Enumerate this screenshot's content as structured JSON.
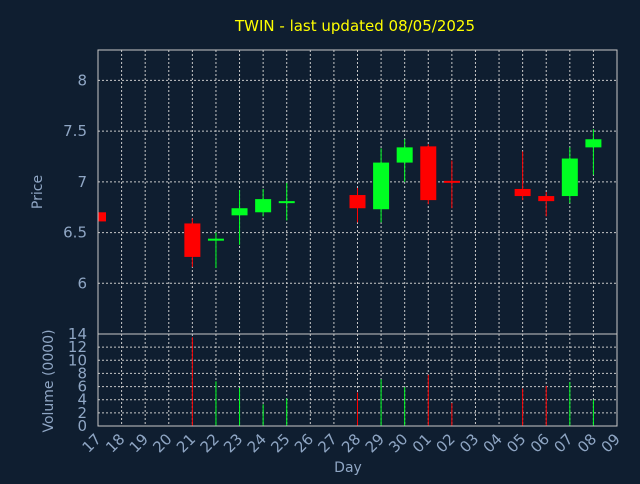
{
  "chart_data": {
    "type": "candlestick",
    "title": "TWIN - last updated 08/05/2025",
    "xlabel": "Day",
    "colors": {
      "background": "#0f1e30",
      "axis_text": "#8fa6c4",
      "title": "#ffff00",
      "up": "#00ff22",
      "down": "#ff0000",
      "grid": "#c8c8c8"
    },
    "x_ticks": [
      "17",
      "18",
      "19",
      "20",
      "21",
      "22",
      "23",
      "24",
      "25",
      "26",
      "27",
      "28",
      "29",
      "30",
      "01",
      "02",
      "03",
      "04",
      "05",
      "06",
      "07",
      "08",
      "09"
    ],
    "price_panel": {
      "ylabel": "Price",
      "ylim": [
        5.5,
        8.3
      ],
      "ticks": [
        {
          "value": 6,
          "label": "6"
        },
        {
          "value": 6.5,
          "label": "6.5"
        },
        {
          "value": 7,
          "label": "7"
        },
        {
          "value": 7.5,
          "label": "7.5"
        },
        {
          "value": 8,
          "label": "8"
        }
      ]
    },
    "volume_panel": {
      "ylabel": "Volume (0000)",
      "ylim": [
        0,
        14
      ],
      "ticks": [
        {
          "value": 0,
          "label": "0"
        },
        {
          "value": 2,
          "label": "2"
        },
        {
          "value": 4,
          "label": "4"
        },
        {
          "value": 6,
          "label": "6"
        },
        {
          "value": 8,
          "label": "8"
        },
        {
          "value": 10,
          "label": "10"
        },
        {
          "value": 12,
          "label": "12"
        },
        {
          "value": 14,
          "label": "14"
        }
      ]
    },
    "candles": [
      {
        "day": "17",
        "idx": 0,
        "open": 6.7,
        "close": 6.61,
        "high": 6.7,
        "low": 6.61,
        "volume": 0
      },
      {
        "day": "21",
        "idx": 4,
        "open": 6.59,
        "close": 6.26,
        "high": 6.64,
        "low": 6.16,
        "volume": 13.5
      },
      {
        "day": "22",
        "idx": 5,
        "open": 6.42,
        "close": 6.44,
        "high": 6.5,
        "low": 6.15,
        "volume": 6.8
      },
      {
        "day": "23",
        "idx": 6,
        "open": 6.67,
        "close": 6.74,
        "high": 6.92,
        "low": 6.38,
        "volume": 5.8
      },
      {
        "day": "24",
        "idx": 7,
        "open": 6.7,
        "close": 6.83,
        "high": 6.93,
        "low": 6.66,
        "volume": 3.3
      },
      {
        "day": "25",
        "idx": 8,
        "open": 6.79,
        "close": 6.81,
        "high": 6.99,
        "low": 6.62,
        "volume": 4.2
      },
      {
        "day": "28",
        "idx": 11,
        "open": 6.87,
        "close": 6.74,
        "high": 6.94,
        "low": 6.6,
        "volume": 5.1
      },
      {
        "day": "29",
        "idx": 12,
        "open": 6.73,
        "close": 7.19,
        "high": 7.33,
        "low": 6.6,
        "volume": 7.1
      },
      {
        "day": "30",
        "idx": 13,
        "open": 7.19,
        "close": 7.34,
        "high": 7.42,
        "low": 7.0,
        "volume": 5.9
      },
      {
        "day": "01",
        "idx": 14,
        "open": 7.35,
        "close": 6.82,
        "high": 7.37,
        "low": 6.78,
        "volume": 7.8
      },
      {
        "day": "02",
        "idx": 15,
        "open": 7.01,
        "close": 7.0,
        "high": 7.21,
        "low": 6.74,
        "volume": 3.5
      },
      {
        "day": "05",
        "idx": 18,
        "open": 6.93,
        "close": 6.86,
        "high": 7.3,
        "low": 6.82,
        "volume": 5.7
      },
      {
        "day": "06",
        "idx": 19,
        "open": 6.86,
        "close": 6.81,
        "high": 6.9,
        "low": 6.66,
        "volume": 6.1
      },
      {
        "day": "07",
        "idx": 20,
        "open": 6.86,
        "close": 7.23,
        "high": 7.34,
        "low": 6.79,
        "volume": 6.7
      },
      {
        "day": "08",
        "idx": 21,
        "open": 7.34,
        "close": 7.42,
        "high": 7.52,
        "low": 7.07,
        "volume": 4.0
      }
    ]
  }
}
